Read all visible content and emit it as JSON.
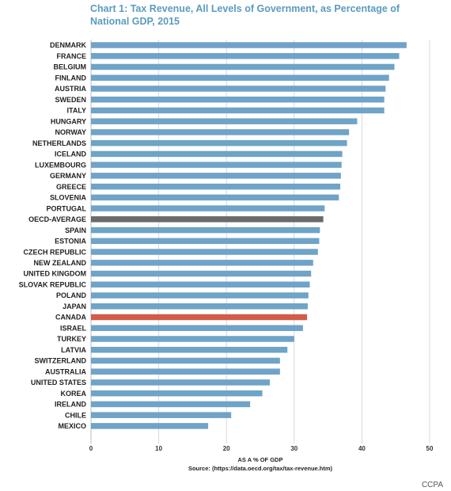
{
  "chart_data": {
    "type": "bar",
    "orientation": "horizontal",
    "title": "Chart 1: Tax Revenue, All Levels of Government, as Percentage of National GDP, 2015",
    "xlabel": "AS A % OF GDP",
    "source": "Source: (https://data.oecd.org/tax/tax-revenue.htm)",
    "xlim": [
      0,
      50
    ],
    "xticks": [
      0,
      10,
      20,
      30,
      40,
      50
    ],
    "grid": true,
    "categories": [
      "DENMARK",
      "FRANCE",
      "BELGIUM",
      "FINLAND",
      "AUSTRIA",
      "SWEDEN",
      "ITALY",
      "HUNGARY",
      "NORWAY",
      "NETHERLANDS",
      "ICELAND",
      "LUXEMBOURG",
      "GERMANY",
      "GREECE",
      "SLOVENIA",
      "PORTUGAL",
      "OECD-AVERAGE",
      "SPAIN",
      "ESTONIA",
      "CZECH REPUBLIC",
      "NEW ZEALAND",
      "UNITED KINGDOM",
      "SLOVAK REPUBLIC",
      "POLAND",
      "JAPAN",
      "CANADA",
      "ISRAEL",
      "TURKEY",
      "LATVIA",
      "SWITZERLAND",
      "AUSTRALIA",
      "UNITED STATES",
      "KOREA",
      "IRELAND",
      "CHILE",
      "MEXICO"
    ],
    "values": [
      46.6,
      45.5,
      44.8,
      44.0,
      43.5,
      43.3,
      43.3,
      39.3,
      38.1,
      37.8,
      37.1,
      37.0,
      36.9,
      36.8,
      36.6,
      34.5,
      34.3,
      33.8,
      33.7,
      33.5,
      32.8,
      32.5,
      32.3,
      32.1,
      32.0,
      31.9,
      31.3,
      30.0,
      29.0,
      27.9,
      27.9,
      26.4,
      25.3,
      23.5,
      20.7,
      17.3
    ],
    "colors": {
      "default": "#6fa3c7",
      "OECD-AVERAGE": "#6a6a6a",
      "CANADA": "#d25b4a"
    }
  },
  "credit": "CCPA"
}
